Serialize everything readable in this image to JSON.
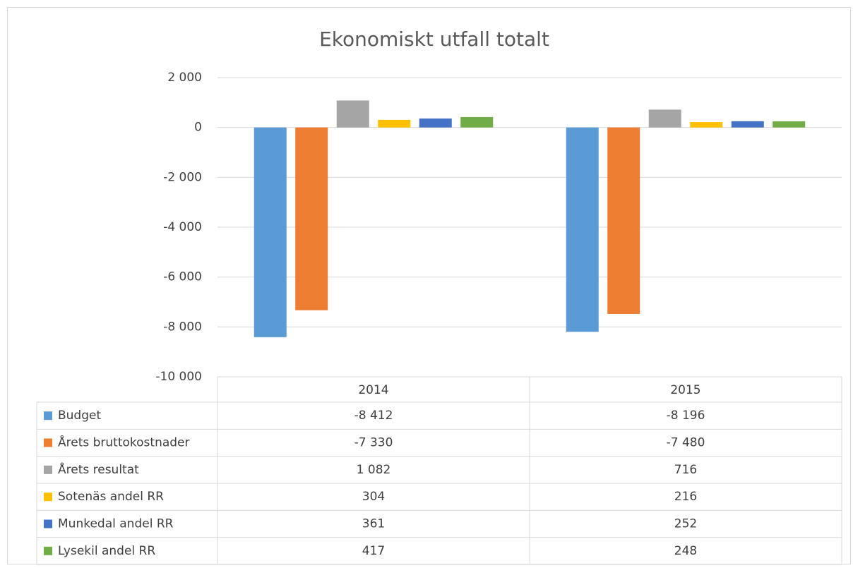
{
  "chart_data": {
    "type": "bar",
    "title": "Ekonomiskt utfall totalt",
    "categories": [
      "2014",
      "2015"
    ],
    "series": [
      {
        "name": "Budget",
        "color": "#5b9bd5",
        "values": [
          -8412,
          -8196
        ],
        "value_labels": [
          "-8 412",
          "-8 196"
        ]
      },
      {
        "name": "Årets bruttokostnader",
        "color": "#ed7d31",
        "values": [
          -7330,
          -7480
        ],
        "value_labels": [
          "-7 330",
          "-7 480"
        ]
      },
      {
        "name": "Årets resultat",
        "color": "#a5a5a5",
        "values": [
          1082,
          716
        ],
        "value_labels": [
          "1 082",
          "716"
        ]
      },
      {
        "name": "Sotenäs andel RR",
        "color": "#ffc000",
        "values": [
          304,
          216
        ],
        "value_labels": [
          "304",
          "216"
        ]
      },
      {
        "name": "Munkedal andel RR",
        "color": "#4472c4",
        "values": [
          361,
          252
        ],
        "value_labels": [
          "361",
          "252"
        ]
      },
      {
        "name": "Lysekil andel RR",
        "color": "#70ad47",
        "values": [
          417,
          248
        ],
        "value_labels": [
          "417",
          "248"
        ]
      }
    ],
    "ylim": [
      -10000,
      2000
    ],
    "yticks": [
      {
        "value": 2000,
        "label": "2 000"
      },
      0,
      {
        "value": -2000,
        "label": "-2 000"
      },
      {
        "value": -4000,
        "label": "-4 000"
      },
      {
        "value": -6000,
        "label": "-6 000"
      },
      {
        "value": -8000,
        "label": "-8 000"
      },
      {
        "value": -10000,
        "label": "-10 000"
      }
    ],
    "grid": true
  }
}
